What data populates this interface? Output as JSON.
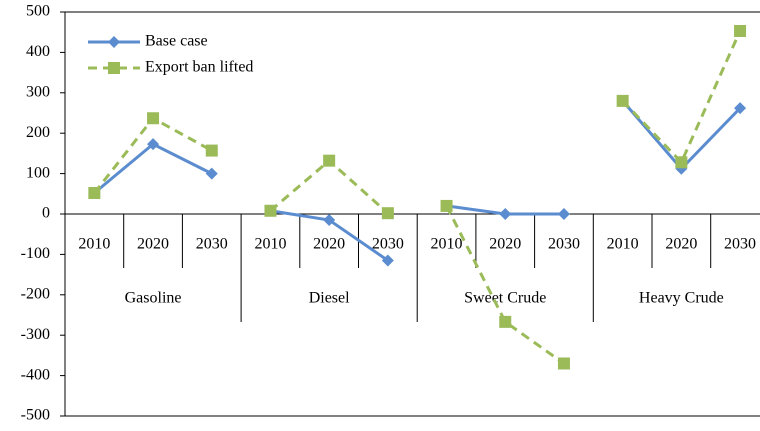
{
  "chart_data": {
    "type": "line",
    "categories": [
      "2010",
      "2020",
      "2030",
      "2010",
      "2020",
      "2030",
      "2010",
      "2020",
      "2030",
      "2010",
      "2020",
      "2030"
    ],
    "groups": [
      "Gasoline",
      "Diesel",
      "Sweet Crude",
      "Heavy Crude"
    ],
    "series": [
      {
        "name": "Base case",
        "color": "#5b8ccf",
        "marker": "diamond",
        "dash": false,
        "values": [
          52,
          173,
          100,
          8,
          -15,
          -115,
          20,
          0,
          0,
          280,
          112,
          262
        ]
      },
      {
        "name": "Export ban lifted",
        "color": "#9bbb59",
        "marker": "square",
        "dash": true,
        "values": [
          52,
          237,
          157,
          8,
          132,
          2,
          20,
          -267,
          -370,
          280,
          128,
          453
        ]
      }
    ],
    "ylim": [
      -500,
      500
    ],
    "yticks": [
      -500,
      -400,
      -300,
      -200,
      -100,
      0,
      100,
      200,
      300,
      400,
      500
    ],
    "legend": "upper left"
  }
}
